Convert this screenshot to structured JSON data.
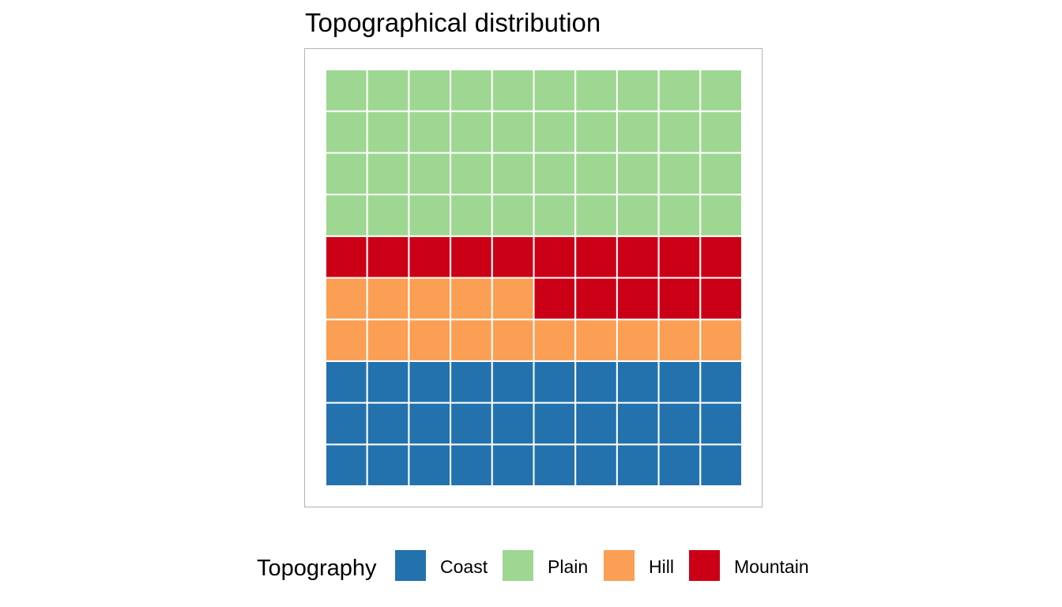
{
  "chart_data": {
    "type": "waffle",
    "title": "Topographical distribution",
    "grid": {
      "rows": 10,
      "cols": 10,
      "fill_order": "bottom-up, left-to-right"
    },
    "categories": [
      "Coast",
      "Plain",
      "Hill",
      "Mountain"
    ],
    "values": [
      30,
      40,
      15,
      15
    ],
    "colors": [
      "#2372ad",
      "#9ed792",
      "#fa9f53",
      "#cb0017"
    ],
    "plain_position": "top",
    "legend": {
      "title": "Topography",
      "placement": "bottom",
      "entries": [
        "Coast",
        "Plain",
        "Hill",
        "Mountain"
      ]
    }
  }
}
